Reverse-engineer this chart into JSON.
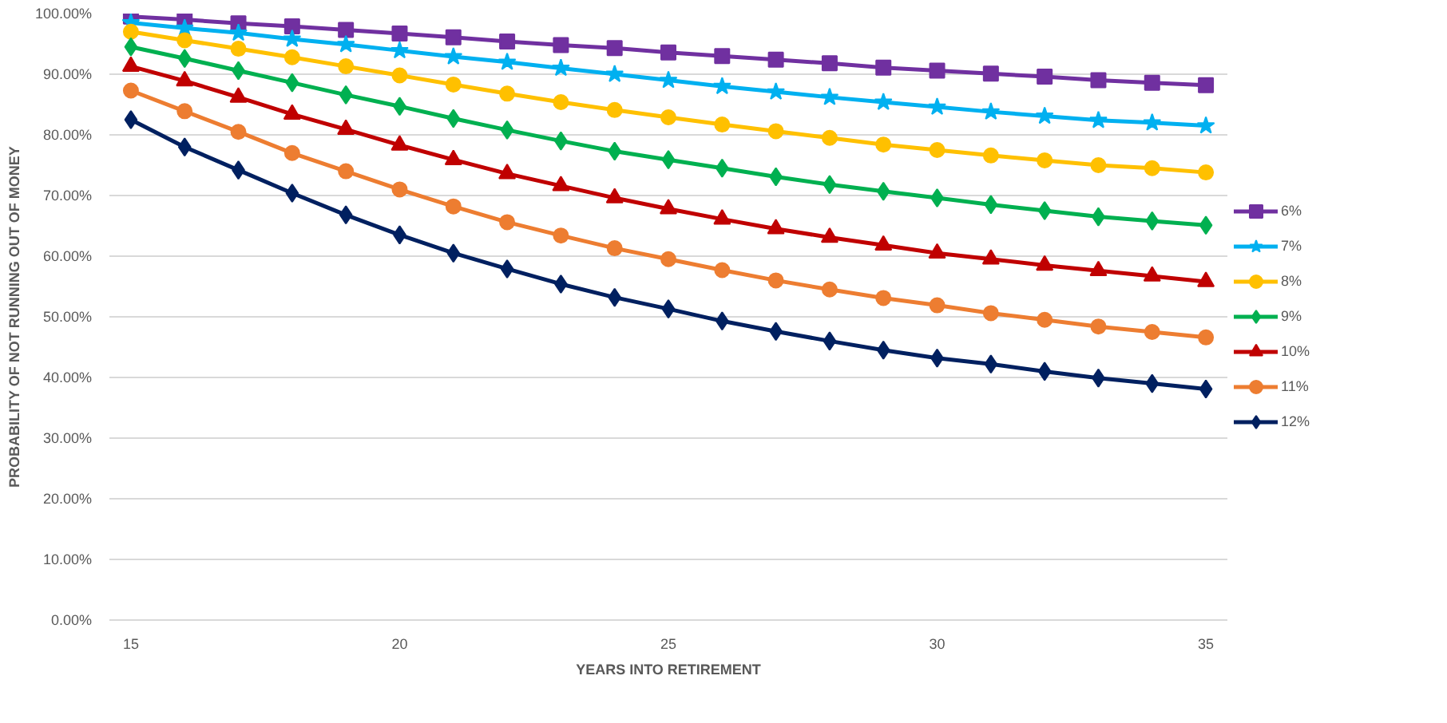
{
  "chart_data": {
    "type": "line",
    "xlabel": "YEARS INTO RETIREMENT",
    "ylabel": "PROBABILITY OF NOT RUNNING OUT OF MONEY",
    "x": [
      15,
      16,
      17,
      18,
      19,
      20,
      21,
      22,
      23,
      24,
      25,
      26,
      27,
      28,
      29,
      30,
      31,
      32,
      33,
      34,
      35
    ],
    "xlim": [
      14.6,
      35.4
    ],
    "xticks": [
      15,
      20,
      25,
      30,
      35
    ],
    "ylim": [
      0,
      100
    ],
    "yticks": [
      {
        "value": 0,
        "label": "0.00%"
      },
      {
        "value": 10,
        "label": "10.00%"
      },
      {
        "value": 20,
        "label": "20.00%"
      },
      {
        "value": 30,
        "label": "30.00%"
      },
      {
        "value": 40,
        "label": "40.00%"
      },
      {
        "value": 50,
        "label": "50.00%"
      },
      {
        "value": 60,
        "label": "60.00%"
      },
      {
        "value": 70,
        "label": "70.00%"
      },
      {
        "value": 80,
        "label": "80.00%"
      },
      {
        "value": 90,
        "label": "90.00%"
      },
      {
        "value": 100,
        "label": "100.00%"
      }
    ],
    "grid": "y",
    "legend": "right",
    "line_style": "solid",
    "series": [
      {
        "name": "6%",
        "color": "#7030a0",
        "marker": "square",
        "values": [
          99.5,
          99,
          98.4,
          97.9,
          97.3,
          96.7,
          96.1,
          95.4,
          94.8,
          94.3,
          93.6,
          93.0,
          92.4,
          91.8,
          91.1,
          90.6,
          90.1,
          89.6,
          89.0,
          88.6,
          88.2
        ]
      },
      {
        "name": "7%",
        "color": "#00b0f0",
        "marker": "star",
        "values": [
          98.5,
          97.6,
          96.8,
          95.8,
          94.9,
          93.9,
          92.9,
          92.0,
          91.0,
          90.0,
          89.0,
          88.0,
          87.1,
          86.2,
          85.4,
          84.6,
          83.8,
          83.1,
          82.4,
          82.0,
          81.5
        ]
      },
      {
        "name": "8%",
        "color": "#ffc000",
        "marker": "circle",
        "values": [
          97,
          95.6,
          94.2,
          92.8,
          91.3,
          89.8,
          88.3,
          86.8,
          85.4,
          84.1,
          82.9,
          81.7,
          80.6,
          79.5,
          78.4,
          77.5,
          76.6,
          75.8,
          75.0,
          74.5,
          73.8
        ]
      },
      {
        "name": "9%",
        "color": "#00b050",
        "marker": "diamond",
        "values": [
          94.5,
          92.6,
          90.6,
          88.6,
          86.6,
          84.7,
          82.7,
          80.8,
          79.0,
          77.3,
          75.9,
          74.5,
          73.1,
          71.8,
          70.7,
          69.6,
          68.5,
          67.5,
          66.5,
          65.8,
          65.1
        ]
      },
      {
        "name": "10%",
        "color": "#c00000",
        "marker": "triangle",
        "values": [
          91.3,
          88.9,
          86.2,
          83.4,
          80.9,
          78.3,
          75.9,
          73.6,
          71.6,
          69.6,
          67.8,
          66.1,
          64.5,
          63.1,
          61.8,
          60.5,
          59.5,
          58.5,
          57.6,
          56.7,
          55.8
        ]
      },
      {
        "name": "11%",
        "color": "#ed7d31",
        "marker": "circle",
        "values": [
          87.3,
          83.9,
          80.5,
          77.0,
          74.0,
          71.0,
          68.2,
          65.6,
          63.4,
          61.3,
          59.5,
          57.7,
          56.0,
          54.5,
          53.1,
          51.9,
          50.6,
          49.5,
          48.4,
          47.5,
          46.6
        ]
      },
      {
        "name": "12%",
        "color": "#002060",
        "marker": "diamond",
        "values": [
          82.5,
          78.0,
          74.2,
          70.4,
          66.8,
          63.5,
          60.5,
          57.9,
          55.4,
          53.2,
          51.3,
          49.3,
          47.6,
          46.0,
          44.5,
          43.2,
          42.2,
          41.0,
          39.9,
          39.0,
          38.1
        ]
      }
    ]
  }
}
